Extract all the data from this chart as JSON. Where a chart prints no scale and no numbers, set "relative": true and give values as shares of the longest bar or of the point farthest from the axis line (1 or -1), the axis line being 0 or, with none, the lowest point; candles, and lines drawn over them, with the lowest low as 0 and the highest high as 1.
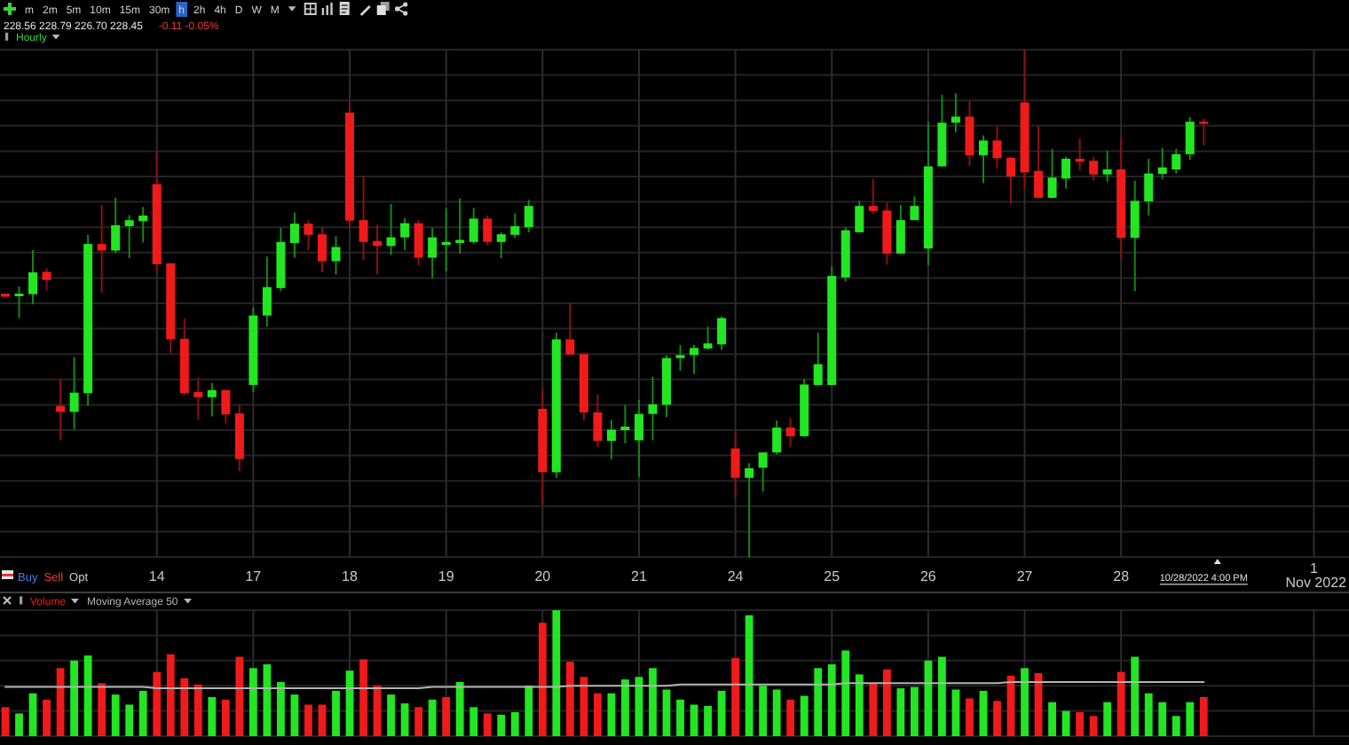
{
  "chart_data": [
    {
      "type": "candlestick",
      "title": "Hourly",
      "relative": true,
      "grid": true,
      "tick_labels": "x",
      "categories": [
        null,
        null,
        null,
        null,
        null,
        null,
        null,
        null,
        null,
        null,
        null,
        "14",
        null,
        null,
        null,
        null,
        null,
        null,
        "17",
        null,
        null,
        null,
        null,
        null,
        null,
        "18",
        null,
        null,
        null,
        null,
        null,
        null,
        "19",
        null,
        null,
        null,
        null,
        null,
        null,
        "20",
        null,
        null,
        null,
        null,
        null,
        null,
        "21",
        null,
        null,
        null,
        null,
        null,
        null,
        "24",
        null,
        null,
        null,
        null,
        null,
        null,
        "25",
        null,
        null,
        null,
        null,
        null,
        null,
        "26",
        null,
        null,
        null,
        null,
        null,
        null,
        "27",
        null,
        null,
        null,
        null,
        null,
        null,
        "28",
        null,
        null,
        null,
        null,
        null,
        null,
        null,
        null,
        null,
        null,
        null,
        null,
        null,
        "1\nNov 2022",
        null
      ],
      "ohlc": [
        [
          0.519,
          0.519,
          0.513,
          0.513
        ],
        [
          0.514,
          0.533,
          0.471,
          0.519
        ],
        [
          0.518,
          0.605,
          0.498,
          0.561
        ],
        [
          0.562,
          0.569,
          0.525,
          0.546
        ],
        [
          0.298,
          0.351,
          0.23,
          0.286
        ],
        [
          0.286,
          0.394,
          0.251,
          0.324
        ],
        [
          0.323,
          0.635,
          0.298,
          0.617
        ],
        [
          0.617,
          0.694,
          0.521,
          0.604
        ],
        [
          0.604,
          0.708,
          0.599,
          0.654
        ],
        [
          0.652,
          0.674,
          0.589,
          0.664
        ],
        [
          0.662,
          0.69,
          0.62,
          0.673
        ],
        [
          0.735,
          0.799,
          0.56,
          0.577
        ],
        [
          0.579,
          0.579,
          0.402,
          0.429
        ],
        [
          0.43,
          0.47,
          0.319,
          0.323
        ],
        [
          0.325,
          0.354,
          0.271,
          0.315
        ],
        [
          0.315,
          0.343,
          0.277,
          0.329
        ],
        [
          0.329,
          0.329,
          0.263,
          0.281
        ],
        [
          0.283,
          0.301,
          0.169,
          0.193
        ],
        [
          0.339,
          0.492,
          0.325,
          0.476
        ],
        [
          0.476,
          0.592,
          0.454,
          0.532
        ],
        [
          0.53,
          0.649,
          0.524,
          0.621
        ],
        [
          0.619,
          0.679,
          0.59,
          0.657
        ],
        [
          0.657,
          0.664,
          0.605,
          0.635
        ],
        [
          0.636,
          0.65,
          0.562,
          0.583
        ],
        [
          0.583,
          0.632,
          0.557,
          0.611
        ],
        [
          0.876,
          0.894,
          0.649,
          0.663
        ],
        [
          0.664,
          0.751,
          0.585,
          0.621
        ],
        [
          0.623,
          0.655,
          0.557,
          0.613
        ],
        [
          0.613,
          0.696,
          0.595,
          0.63
        ],
        [
          0.63,
          0.668,
          0.605,
          0.658
        ],
        [
          0.658,
          0.664,
          0.575,
          0.59
        ],
        [
          0.59,
          0.649,
          0.549,
          0.63
        ],
        [
          0.615,
          0.687,
          0.563,
          0.621
        ],
        [
          0.619,
          0.707,
          0.598,
          0.625
        ],
        [
          0.621,
          0.688,
          0.617,
          0.667
        ],
        [
          0.667,
          0.673,
          0.615,
          0.621
        ],
        [
          0.621,
          0.64,
          0.589,
          0.636
        ],
        [
          0.635,
          0.677,
          0.629,
          0.652
        ],
        [
          0.65,
          0.704,
          0.64,
          0.692
        ],
        [
          0.292,
          0.331,
          0.102,
          0.167
        ],
        [
          0.167,
          0.442,
          0.156,
          0.429
        ],
        [
          0.429,
          0.501,
          0.399,
          0.399
        ],
        [
          0.4,
          0.4,
          0.269,
          0.285
        ],
        [
          0.285,
          0.32,
          0.217,
          0.229
        ],
        [
          0.229,
          0.27,
          0.193,
          0.251
        ],
        [
          0.25,
          0.3,
          0.224,
          0.257
        ],
        [
          0.23,
          0.31,
          0.158,
          0.282
        ],
        [
          0.282,
          0.355,
          0.23,
          0.301
        ],
        [
          0.3,
          0.398,
          0.276,
          0.392
        ],
        [
          0.392,
          0.418,
          0.367,
          0.398
        ],
        [
          0.398,
          0.418,
          0.361,
          0.412
        ],
        [
          0.411,
          0.454,
          0.408,
          0.421
        ],
        [
          0.419,
          0.474,
          0.408,
          0.471
        ],
        [
          0.214,
          0.246,
          0.117,
          0.156
        ],
        [
          0.156,
          0.185,
          0,
          0.175
        ],
        [
          0.176,
          0.206,
          0.129,
          0.206
        ],
        [
          0.206,
          0.269,
          0.202,
          0.255
        ],
        [
          0.255,
          0.274,
          0.217,
          0.238
        ],
        [
          0.238,
          0.351,
          0.237,
          0.34
        ],
        [
          0.339,
          0.442,
          0.337,
          0.38
        ],
        [
          0.339,
          0.573,
          0.339,
          0.554
        ],
        [
          0.551,
          0.65,
          0.543,
          0.644
        ],
        [
          0.64,
          0.702,
          0.64,
          0.692
        ],
        [
          0.692,
          0.745,
          0.676,
          0.682
        ],
        [
          0.683,
          0.699,
          0.576,
          0.598
        ],
        [
          0.598,
          0.694,
          0.598,
          0.664
        ],
        [
          0.664,
          0.711,
          0.664,
          0.692
        ],
        [
          0.608,
          0.858,
          0.575,
          0.77
        ],
        [
          0.77,
          0.911,
          0.769,
          0.856
        ],
        [
          0.856,
          0.914,
          0.837,
          0.868
        ],
        [
          0.868,
          0.899,
          0.771,
          0.792
        ],
        [
          0.792,
          0.831,
          0.737,
          0.821
        ],
        [
          0.821,
          0.849,
          0.765,
          0.786
        ],
        [
          0.787,
          0.789,
          0.696,
          0.75
        ],
        [
          0.896,
          1,
          0.726,
          0.758
        ],
        [
          0.761,
          0.849,
          0.708,
          0.708
        ],
        [
          0.708,
          0.804,
          0.706,
          0.748
        ],
        [
          0.746,
          0.789,
          0.726,
          0.785
        ],
        [
          0.785,
          0.825,
          0.762,
          0.779
        ],
        [
          0.781,
          0.789,
          0.742,
          0.754
        ],
        [
          0.754,
          0.801,
          0.739,
          0.764
        ],
        [
          0.764,
          0.829,
          0.587,
          0.629
        ],
        [
          0.629,
          0.742,
          0.524,
          0.702
        ],
        [
          0.701,
          0.785,
          0.673,
          0.756
        ],
        [
          0.755,
          0.806,
          0.745,
          0.768
        ],
        [
          0.764,
          0.804,
          0.756,
          0.794
        ],
        [
          0.794,
          0.867,
          0.783,
          0.858
        ],
        [
          0.858,
          0.864,
          0.811,
          0.854
        ],
        null,
        null,
        null,
        null,
        null,
        null,
        null,
        null,
        null
      ],
      "colors": [
        "#f01a1a",
        "#22e622",
        "#22e622",
        "#f01a1a",
        "#f01a1a",
        "#22e622",
        "#22e622",
        "#f01a1a",
        "#22e622",
        "#22e622",
        "#22e622",
        "#f01a1a",
        "#f01a1a",
        "#f01a1a",
        "#f01a1a",
        "#22e622",
        "#f01a1a",
        "#f01a1a",
        "#22e622",
        "#22e622",
        "#22e622",
        "#22e622",
        "#f01a1a",
        "#f01a1a",
        "#22e622",
        "#f01a1a",
        "#f01a1a",
        "#f01a1a",
        "#22e622",
        "#22e622",
        "#f01a1a",
        "#22e622",
        "#22e622",
        "#22e622",
        "#22e622",
        "#f01a1a",
        "#22e622",
        "#22e622",
        "#22e622",
        "#f01a1a",
        "#22e622",
        "#f01a1a",
        "#f01a1a",
        "#f01a1a",
        "#22e622",
        "#22e622",
        "#22e622",
        "#22e622",
        "#22e622",
        "#22e622",
        "#22e622",
        "#22e622",
        "#22e622",
        "#f01a1a",
        "#22e622",
        "#22e622",
        "#22e622",
        "#f01a1a",
        "#22e622",
        "#22e622",
        "#22e622",
        "#22e622",
        "#22e622",
        "#f01a1a",
        "#f01a1a",
        "#22e622",
        "#22e622",
        "#22e622",
        "#22e622",
        "#22e622",
        "#f01a1a",
        "#22e622",
        "#f01a1a",
        "#f01a1a",
        "#f01a1a",
        "#f01a1a",
        "#22e622",
        "#22e622",
        "#f01a1a",
        "#f01a1a",
        "#22e622",
        "#f01a1a",
        "#22e622",
        "#22e622",
        "#22e622",
        "#22e622",
        "#22e622",
        "#f01a1a",
        null,
        null,
        null,
        null,
        null,
        null,
        null,
        null,
        null
      ],
      "annotations": [
        "m",
        "2m",
        "5m",
        "10m",
        "15m",
        "30m",
        "h",
        "2h",
        "4h",
        "D",
        "W",
        "M",
        "228.56 228.79 226.70 228.45",
        "-0.11 -0.05%",
        "Buy",
        "Sell",
        "Opt",
        "10/28/2022 4:00 PM"
      ]
    },
    {
      "type": "bar",
      "relative": true,
      "grid": true,
      "tick_labels": false,
      "legend": "top left",
      "categories": [
        null,
        null,
        null,
        null,
        null,
        null,
        null,
        null,
        null,
        null,
        null,
        null,
        null,
        null,
        null,
        null,
        null,
        null,
        null,
        null,
        null,
        null,
        null,
        null,
        null,
        null,
        null,
        null,
        null,
        null,
        null,
        null,
        null,
        null,
        null,
        null,
        null,
        null,
        null,
        null,
        null,
        null,
        null,
        null,
        null,
        null,
        null,
        null,
        null,
        null,
        null,
        null,
        null,
        null,
        null,
        null,
        null,
        null,
        null,
        null,
        null,
        null,
        null,
        null,
        null,
        null,
        null,
        null,
        null,
        null,
        null,
        null,
        null,
        null,
        null,
        null,
        null,
        null,
        null,
        null,
        null,
        null,
        null,
        null,
        null,
        null,
        null,
        null,
        null,
        null,
        null,
        null,
        null,
        null,
        null,
        null,
        null
      ],
      "series": [
        {
          "name": "Volume",
          "type": "bar",
          "values": [
            0.23,
            0.18,
            0.34,
            0.29,
            0.54,
            0.6,
            0.64,
            0.42,
            0.33,
            0.25,
            0.36,
            0.51,
            0.65,
            0.46,
            0.41,
            0.31,
            0.29,
            0.63,
            0.54,
            0.57,
            0.43,
            0.33,
            0.25,
            0.25,
            0.36,
            0.52,
            0.61,
            0.4,
            0.33,
            0.26,
            0.23,
            0.29,
            0.31,
            0.43,
            0.23,
            0.18,
            0.17,
            0.19,
            0.4,
            0.9,
            1,
            0.59,
            0.47,
            0.34,
            0.34,
            0.45,
            0.47,
            0.54,
            0.37,
            0.29,
            0.25,
            0.24,
            0.36,
            0.62,
            0.96,
            0.4,
            0.37,
            0.29,
            0.32,
            0.54,
            0.57,
            0.68,
            0.49,
            0.42,
            0.53,
            0.38,
            0.39,
            0.6,
            0.63,
            0.37,
            0.3,
            0.36,
            0.28,
            0.48,
            0.54,
            0.5,
            0.27,
            0.2,
            0.19,
            0.16,
            0.27,
            0.51,
            0.63,
            0.34,
            0.27,
            0.16,
            0.27,
            0.31,
            null,
            null,
            null,
            null,
            null,
            null,
            null,
            null,
            null
          ],
          "colors": [
            "#f01a1a",
            "#22e622",
            "#22e622",
            "#f01a1a",
            "#f01a1a",
            "#22e622",
            "#22e622",
            "#f01a1a",
            "#22e622",
            "#22e622",
            "#22e622",
            "#f01a1a",
            "#f01a1a",
            "#f01a1a",
            "#f01a1a",
            "#22e622",
            "#f01a1a",
            "#f01a1a",
            "#22e622",
            "#22e622",
            "#22e622",
            "#22e622",
            "#f01a1a",
            "#f01a1a",
            "#22e622",
            "#22e622",
            "#f01a1a",
            "#f01a1a",
            "#22e622",
            "#22e622",
            "#f01a1a",
            "#22e622",
            "#f01a1a",
            "#22e622",
            "#22e622",
            "#f01a1a",
            "#22e622",
            "#22e622",
            "#22e622",
            "#f01a1a",
            "#22e622",
            "#f01a1a",
            "#f01a1a",
            "#f01a1a",
            "#22e622",
            "#22e622",
            "#22e622",
            "#22e622",
            "#22e622",
            "#22e622",
            "#22e622",
            "#22e622",
            "#22e622",
            "#f01a1a",
            "#22e622",
            "#22e622",
            "#22e622",
            "#f01a1a",
            "#22e622",
            "#22e622",
            "#22e622",
            "#22e622",
            "#22e622",
            "#f01a1a",
            "#f01a1a",
            "#22e622",
            "#22e622",
            "#22e622",
            "#22e622",
            "#22e622",
            "#f01a1a",
            "#22e622",
            "#f01a1a",
            "#f01a1a",
            "#22e622",
            "#f01a1a",
            "#22e622",
            "#22e622",
            "#f01a1a",
            "#f01a1a",
            "#22e622",
            "#f01a1a",
            "#22e622",
            "#22e622",
            "#22e622",
            "#22e622",
            "#22e622",
            "#f01a1a",
            null,
            null,
            null,
            null,
            null,
            null,
            null,
            null,
            null
          ]
        },
        {
          "name": "Moving Average 50",
          "type": "line",
          "color": "#b4b4b4",
          "values": [
            0.39,
            0.39,
            0.39,
            0.39,
            0.39,
            0.39,
            0.39,
            0.39,
            0.39,
            0.39,
            0.39,
            0.38,
            0.38,
            0.38,
            0.38,
            0.38,
            0.38,
            0.38,
            0.38,
            0.38,
            0.38,
            0.38,
            0.38,
            0.38,
            0.38,
            0.38,
            0.38,
            0.38,
            0.38,
            0.38,
            0.38,
            0.39,
            0.39,
            0.39,
            0.39,
            0.39,
            0.39,
            0.39,
            0.39,
            0.39,
            0.39,
            0.4,
            0.4,
            0.4,
            0.4,
            0.4,
            0.4,
            0.4,
            0.4,
            0.41,
            0.41,
            0.41,
            0.41,
            0.41,
            0.41,
            0.41,
            0.41,
            0.41,
            0.41,
            0.41,
            0.41,
            0.42,
            0.42,
            0.42,
            0.42,
            0.42,
            0.42,
            0.42,
            0.42,
            0.42,
            0.42,
            0.42,
            0.42,
            0.43,
            0.43,
            0.43,
            0.43,
            0.43,
            0.43,
            0.43,
            0.43,
            0.43,
            0.43,
            0.43,
            0.43,
            0.43,
            0.43,
            0.43,
            null,
            null,
            null,
            null,
            null,
            null,
            null,
            null,
            null
          ]
        }
      ]
    }
  ]
}
